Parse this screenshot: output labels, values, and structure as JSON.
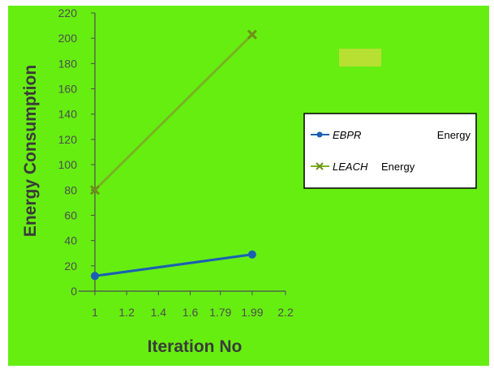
{
  "chart_data": {
    "type": "line",
    "xlabel": "Iteration No",
    "ylabel": "Energy Consumption",
    "xlim": [
      1,
      2.2
    ],
    "ylim": [
      0,
      220
    ],
    "x_ticks": [
      "1",
      "1.2",
      "1.4",
      "1.6",
      "1.79",
      "1.99",
      "2.2"
    ],
    "x_tick_values": [
      1,
      1.2,
      1.4,
      1.6,
      1.79,
      1.99,
      2.2
    ],
    "y_ticks": [
      0,
      20,
      40,
      60,
      80,
      100,
      120,
      140,
      160,
      180,
      200,
      220
    ],
    "series": [
      {
        "name": "EBPR",
        "name_suffix": "Energy",
        "x": [
          1,
          1.99
        ],
        "y": [
          12,
          29
        ],
        "color": "#1a5fb4",
        "marker": "circle"
      },
      {
        "name": "LEACH",
        "name_suffix": "Energy",
        "x": [
          1,
          1.99
        ],
        "y": [
          80,
          203
        ],
        "color": "#77b520",
        "marker": "x"
      }
    ],
    "legend_position": "right",
    "grid": false
  },
  "colors": {
    "background": "#66ee11",
    "decoration": "#b7e033"
  }
}
